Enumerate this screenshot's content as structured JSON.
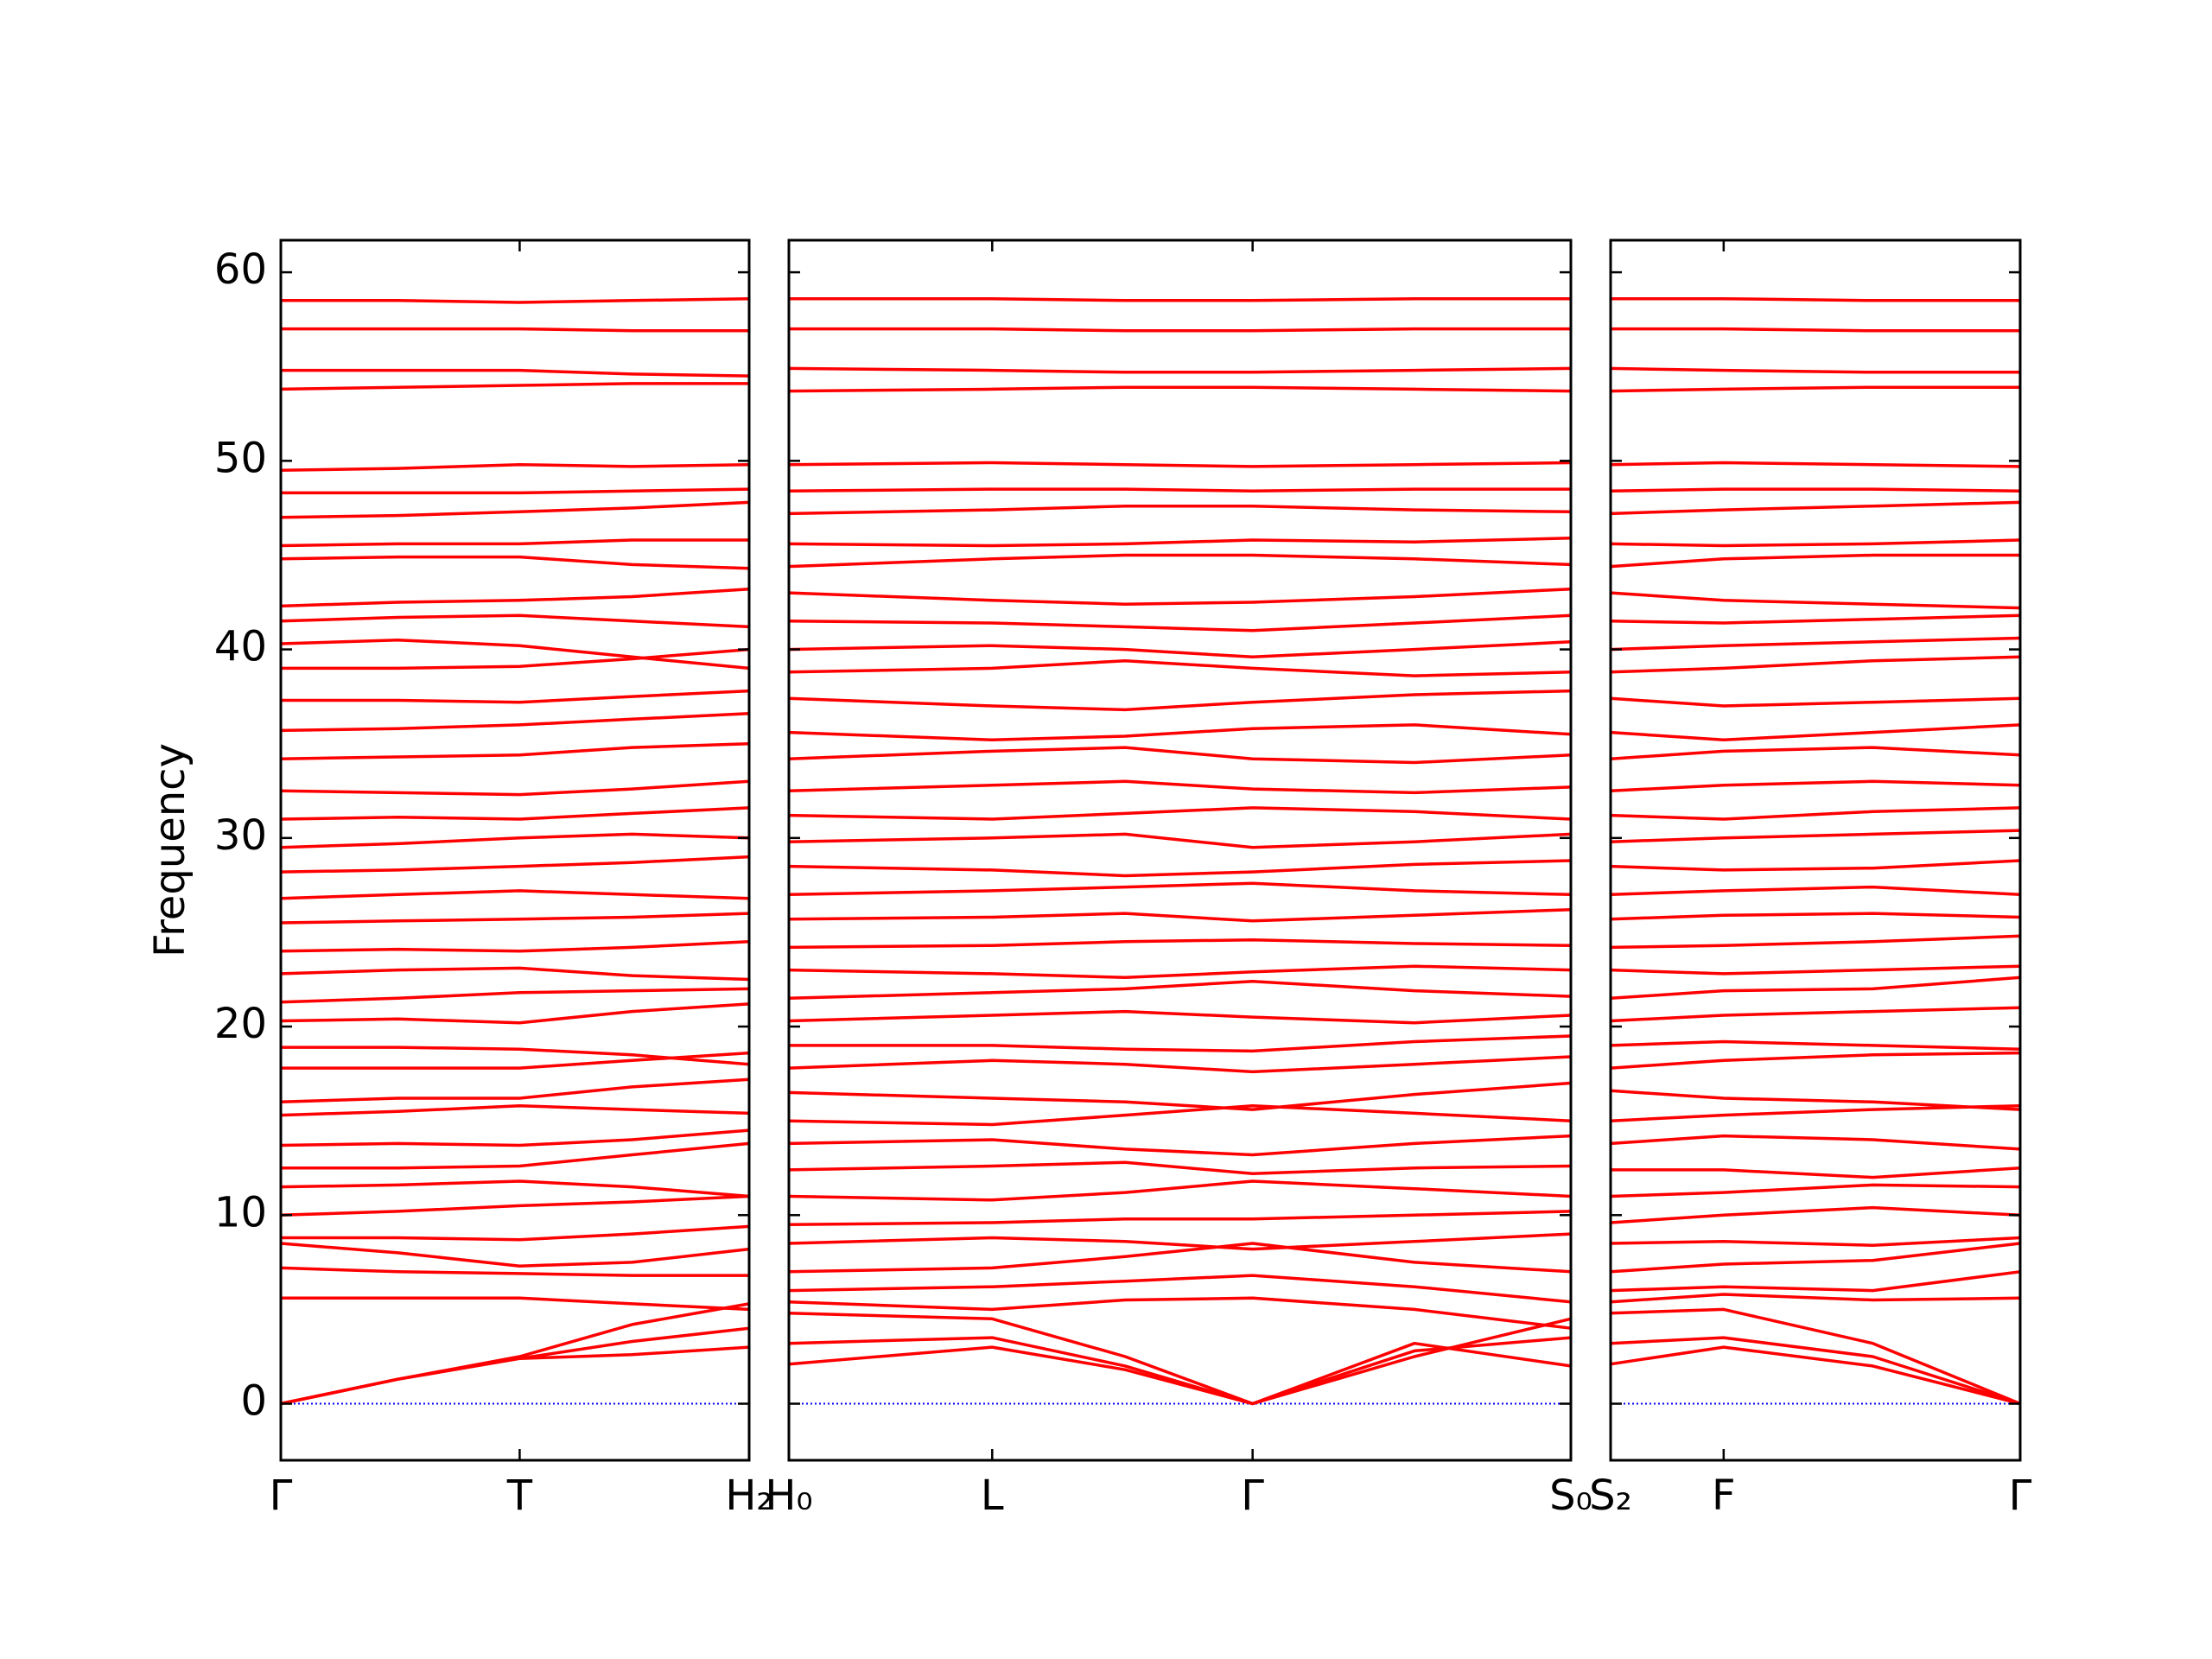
{
  "chart_data": [
    {
      "type": "line",
      "ylabel": "Frequency",
      "color": "#ff0000",
      "xlim": [
        0,
        1
      ],
      "xticks": [
        {
          "value": 0,
          "label": "Γ"
        },
        {
          "value": 0.51,
          "label": "T"
        },
        {
          "value": 1,
          "label": "H₂"
        }
      ],
      "ylim": [
        -3,
        61.7
      ],
      "yticks": [
        0,
        10,
        20,
        30,
        40,
        50,
        60
      ],
      "hline": 0,
      "hline_color": "#0000ff",
      "hline_style": "dotted",
      "x": [
        0,
        0.25,
        0.51,
        0.75,
        1
      ],
      "bands": [
        [
          0,
          1.3,
          2.4,
          2.6,
          3.0
        ],
        [
          0,
          1.3,
          2.4,
          3.3,
          4.0
        ],
        [
          0,
          1.3,
          2.5,
          4.2,
          5.3
        ],
        [
          5.6,
          5.6,
          5.6,
          5.3,
          5.0
        ],
        [
          7.2,
          7.0,
          6.9,
          6.8,
          6.8
        ],
        [
          8.5,
          8.0,
          7.3,
          7.5,
          8.2
        ],
        [
          8.8,
          8.8,
          8.7,
          9.0,
          9.4
        ],
        [
          10.0,
          10.2,
          10.5,
          10.7,
          11.0
        ],
        [
          11.5,
          11.6,
          11.8,
          11.5,
          11.0
        ],
        [
          12.5,
          12.5,
          12.6,
          13.2,
          13.8
        ],
        [
          13.7,
          13.8,
          13.7,
          14.0,
          14.5
        ],
        [
          15.3,
          15.5,
          15.8,
          15.6,
          15.4
        ],
        [
          16.0,
          16.2,
          16.2,
          16.8,
          17.2
        ],
        [
          17.8,
          17.8,
          17.8,
          18.2,
          18.6
        ],
        [
          18.9,
          18.9,
          18.8,
          18.5,
          18.0
        ],
        [
          20.3,
          20.4,
          20.2,
          20.8,
          21.2
        ],
        [
          21.3,
          21.5,
          21.8,
          21.9,
          22.0
        ],
        [
          22.8,
          23.0,
          23.1,
          22.7,
          22.5
        ],
        [
          24.0,
          24.1,
          24.0,
          24.2,
          24.5
        ],
        [
          25.5,
          25.6,
          25.7,
          25.8,
          26.0
        ],
        [
          26.8,
          27.0,
          27.2,
          27.0,
          26.8
        ],
        [
          28.2,
          28.3,
          28.5,
          28.7,
          29.0
        ],
        [
          29.5,
          29.7,
          30.0,
          30.2,
          30.0
        ],
        [
          31.0,
          31.1,
          31.0,
          31.3,
          31.6
        ],
        [
          32.5,
          32.4,
          32.3,
          32.6,
          33.0
        ],
        [
          34.2,
          34.3,
          34.4,
          34.8,
          35.0
        ],
        [
          35.7,
          35.8,
          36.0,
          36.3,
          36.6
        ],
        [
          37.3,
          37.3,
          37.2,
          37.5,
          37.8
        ],
        [
          39.0,
          39.0,
          39.1,
          39.5,
          40.0
        ],
        [
          40.3,
          40.5,
          40.2,
          39.6,
          39.0
        ],
        [
          41.5,
          41.7,
          41.8,
          41.5,
          41.2
        ],
        [
          42.3,
          42.5,
          42.6,
          42.8,
          43.2
        ],
        [
          44.8,
          44.9,
          44.9,
          44.5,
          44.3
        ],
        [
          45.5,
          45.6,
          45.6,
          45.8,
          45.8
        ],
        [
          47.0,
          47.1,
          47.3,
          47.5,
          47.8
        ],
        [
          48.3,
          48.3,
          48.3,
          48.4,
          48.5
        ],
        [
          49.5,
          49.6,
          49.8,
          49.7,
          49.8
        ],
        [
          53.8,
          53.9,
          54.0,
          54.1,
          54.1
        ],
        [
          54.8,
          54.8,
          54.8,
          54.6,
          54.5
        ],
        [
          57.0,
          57.0,
          57.0,
          56.9,
          56.9
        ],
        [
          58.5,
          58.5,
          58.4,
          58.5,
          58.6
        ]
      ]
    },
    {
      "type": "line",
      "color": "#ff0000",
      "xlim": [
        0,
        1
      ],
      "xticks": [
        {
          "value": 0,
          "label": "H₀"
        },
        {
          "value": 0.26,
          "label": "L"
        },
        {
          "value": 0.593,
          "label": "Γ"
        },
        {
          "value": 1,
          "label": "S₀"
        }
      ],
      "ylim": [
        -3,
        61.7
      ],
      "hline": 0,
      "hline_color": "#0000ff",
      "hline_style": "dotted",
      "x": [
        0,
        0.26,
        0.43,
        0.593,
        0.8,
        1
      ],
      "bands": [
        [
          2.1,
          3.0,
          1.8,
          0,
          2.5,
          4.5
        ],
        [
          3.2,
          3.5,
          2.0,
          0,
          2.8,
          3.5
        ],
        [
          4.8,
          4.5,
          2.5,
          0,
          3.2,
          2.0
        ],
        [
          5.4,
          5.0,
          5.5,
          5.6,
          5.0,
          4.0
        ],
        [
          6.0,
          6.2,
          6.5,
          6.8,
          6.2,
          5.4
        ],
        [
          7.0,
          7.2,
          7.8,
          8.5,
          7.5,
          7.0
        ],
        [
          8.5,
          8.8,
          8.6,
          8.2,
          8.6,
          9.0
        ],
        [
          9.5,
          9.6,
          9.8,
          9.8,
          10.0,
          10.2
        ],
        [
          11.0,
          10.8,
          11.2,
          11.8,
          11.4,
          11.0
        ],
        [
          12.4,
          12.6,
          12.8,
          12.2,
          12.5,
          12.6
        ],
        [
          13.8,
          14.0,
          13.5,
          13.2,
          13.8,
          14.2
        ],
        [
          15.0,
          14.8,
          15.3,
          15.8,
          15.4,
          15.0
        ],
        [
          16.5,
          16.2,
          16.0,
          15.6,
          16.4,
          17.0
        ],
        [
          17.8,
          18.2,
          18.0,
          17.6,
          18.0,
          18.4
        ],
        [
          19.0,
          19.0,
          18.8,
          18.7,
          19.2,
          19.5
        ],
        [
          20.3,
          20.6,
          20.8,
          20.5,
          20.2,
          20.6
        ],
        [
          21.5,
          21.8,
          22.0,
          22.4,
          21.9,
          21.6
        ],
        [
          23.0,
          22.8,
          22.6,
          22.9,
          23.2,
          23.0
        ],
        [
          24.2,
          24.3,
          24.5,
          24.6,
          24.4,
          24.3
        ],
        [
          25.7,
          25.8,
          26.0,
          25.6,
          25.9,
          26.2
        ],
        [
          27.0,
          27.2,
          27.4,
          27.6,
          27.2,
          27.0
        ],
        [
          28.5,
          28.3,
          28.0,
          28.2,
          28.6,
          28.8
        ],
        [
          29.8,
          30.0,
          30.2,
          29.5,
          29.8,
          30.2
        ],
        [
          31.2,
          31.0,
          31.3,
          31.6,
          31.4,
          31.0
        ],
        [
          32.5,
          32.8,
          33.0,
          32.6,
          32.4,
          32.7
        ],
        [
          34.2,
          34.6,
          34.8,
          34.2,
          34.0,
          34.4
        ],
        [
          35.6,
          35.2,
          35.4,
          35.8,
          36.0,
          35.5
        ],
        [
          37.4,
          37.0,
          36.8,
          37.2,
          37.6,
          37.8
        ],
        [
          38.8,
          39.0,
          39.4,
          39.0,
          38.6,
          38.8
        ],
        [
          40.0,
          40.2,
          40.0,
          39.6,
          40.0,
          40.4
        ],
        [
          41.5,
          41.4,
          41.2,
          41.0,
          41.4,
          41.8
        ],
        [
          43.0,
          42.6,
          42.4,
          42.5,
          42.8,
          43.2
        ],
        [
          44.4,
          44.8,
          45.0,
          45.0,
          44.8,
          44.5
        ],
        [
          45.6,
          45.5,
          45.6,
          45.8,
          45.7,
          45.9
        ],
        [
          47.2,
          47.4,
          47.6,
          47.6,
          47.4,
          47.3
        ],
        [
          48.4,
          48.5,
          48.5,
          48.4,
          48.5,
          48.5
        ],
        [
          49.8,
          49.9,
          49.8,
          49.7,
          49.8,
          49.9
        ],
        [
          53.7,
          53.8,
          53.9,
          53.9,
          53.8,
          53.7
        ],
        [
          54.9,
          54.8,
          54.7,
          54.7,
          54.8,
          54.9
        ],
        [
          57.0,
          57.0,
          56.9,
          56.9,
          57.0,
          57.0
        ],
        [
          58.6,
          58.6,
          58.5,
          58.5,
          58.6,
          58.6
        ]
      ]
    },
    {
      "type": "line",
      "color": "#ff0000",
      "xlim": [
        0,
        1
      ],
      "xticks": [
        {
          "value": 0,
          "label": "S₂"
        },
        {
          "value": 0.276,
          "label": "F"
        },
        {
          "value": 1,
          "label": "Γ"
        }
      ],
      "ylim": [
        -3,
        61.7
      ],
      "hline": 0,
      "hline_color": "#0000ff",
      "hline_style": "dotted",
      "x": [
        0,
        0.276,
        0.64,
        1
      ],
      "bands": [
        [
          2.1,
          3.0,
          2.0,
          0
        ],
        [
          3.2,
          3.5,
          2.5,
          0
        ],
        [
          4.8,
          5.0,
          3.2,
          0
        ],
        [
          5.4,
          5.8,
          5.5,
          5.6
        ],
        [
          6.0,
          6.2,
          6.0,
          7.0
        ],
        [
          7.0,
          7.4,
          7.6,
          8.5
        ],
        [
          8.5,
          8.6,
          8.4,
          8.8
        ],
        [
          9.6,
          10.0,
          10.4,
          10.0
        ],
        [
          11.0,
          11.2,
          11.6,
          11.5
        ],
        [
          12.4,
          12.4,
          12.0,
          12.5
        ],
        [
          13.8,
          14.2,
          14.0,
          13.5
        ],
        [
          15.0,
          15.3,
          15.6,
          15.8
        ],
        [
          16.6,
          16.2,
          16.0,
          15.6
        ],
        [
          17.8,
          18.2,
          18.5,
          18.6
        ],
        [
          19.0,
          19.2,
          19.0,
          18.8
        ],
        [
          20.3,
          20.6,
          20.8,
          21.0
        ],
        [
          21.5,
          21.9,
          22.0,
          22.6
        ],
        [
          23.0,
          22.8,
          23.0,
          23.2
        ],
        [
          24.2,
          24.3,
          24.5,
          24.8
        ],
        [
          25.7,
          25.9,
          26.0,
          25.8
        ],
        [
          27.0,
          27.2,
          27.4,
          27.0
        ],
        [
          28.5,
          28.3,
          28.4,
          28.8
        ],
        [
          29.8,
          30.0,
          30.2,
          30.4
        ],
        [
          31.2,
          31.0,
          31.4,
          31.6
        ],
        [
          32.5,
          32.8,
          33.0,
          32.8
        ],
        [
          34.2,
          34.6,
          34.8,
          34.4
        ],
        [
          35.6,
          35.2,
          35.6,
          36.0
        ],
        [
          37.4,
          37.0,
          37.2,
          37.4
        ],
        [
          38.8,
          39.0,
          39.4,
          39.6
        ],
        [
          40.0,
          40.2,
          40.4,
          40.6
        ],
        [
          41.5,
          41.4,
          41.6,
          41.8
        ],
        [
          43.0,
          42.6,
          42.4,
          42.2
        ],
        [
          44.4,
          44.8,
          45.0,
          45.0
        ],
        [
          45.6,
          45.5,
          45.6,
          45.8
        ],
        [
          47.2,
          47.4,
          47.6,
          47.8
        ],
        [
          48.4,
          48.5,
          48.5,
          48.4
        ],
        [
          49.8,
          49.9,
          49.8,
          49.7
        ],
        [
          53.7,
          53.8,
          53.9,
          53.9
        ],
        [
          54.9,
          54.8,
          54.7,
          54.7
        ],
        [
          57.0,
          57.0,
          56.9,
          56.9
        ],
        [
          58.6,
          58.6,
          58.5,
          58.5
        ]
      ]
    }
  ]
}
